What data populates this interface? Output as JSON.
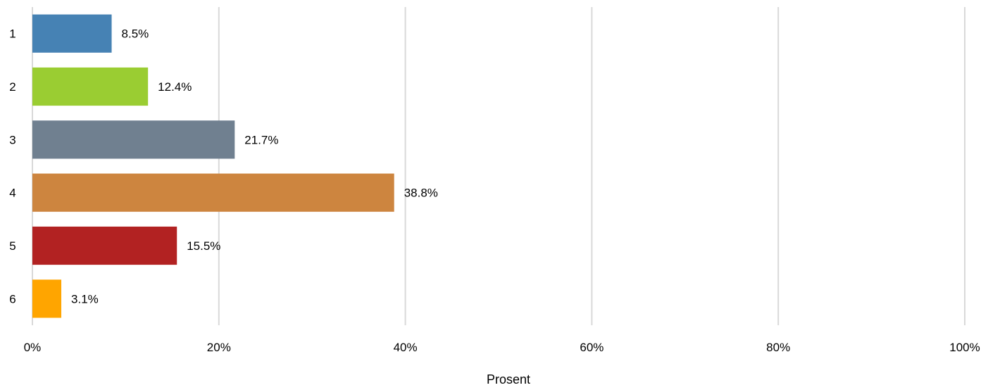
{
  "chart_data": {
    "type": "bar",
    "orientation": "horizontal",
    "categories": [
      "1",
      "2",
      "3",
      "4",
      "5",
      "6"
    ],
    "values": [
      8.5,
      12.4,
      21.7,
      38.8,
      15.5,
      3.1
    ],
    "data_labels": [
      "8.5%",
      "12.4%",
      "21.7%",
      "38.8%",
      "15.5%",
      "3.1%"
    ],
    "colors": [
      "#4682B4",
      "#9ACD32",
      "#708090",
      "#CD853F",
      "#B22222",
      "#FFA500"
    ],
    "x_ticks": [
      "0%",
      "20%",
      "40%",
      "60%",
      "80%",
      "100%"
    ],
    "xlim": [
      0,
      100
    ],
    "xlabel": "Prosent",
    "ylabel": "",
    "title": "",
    "grid": "vertical"
  }
}
